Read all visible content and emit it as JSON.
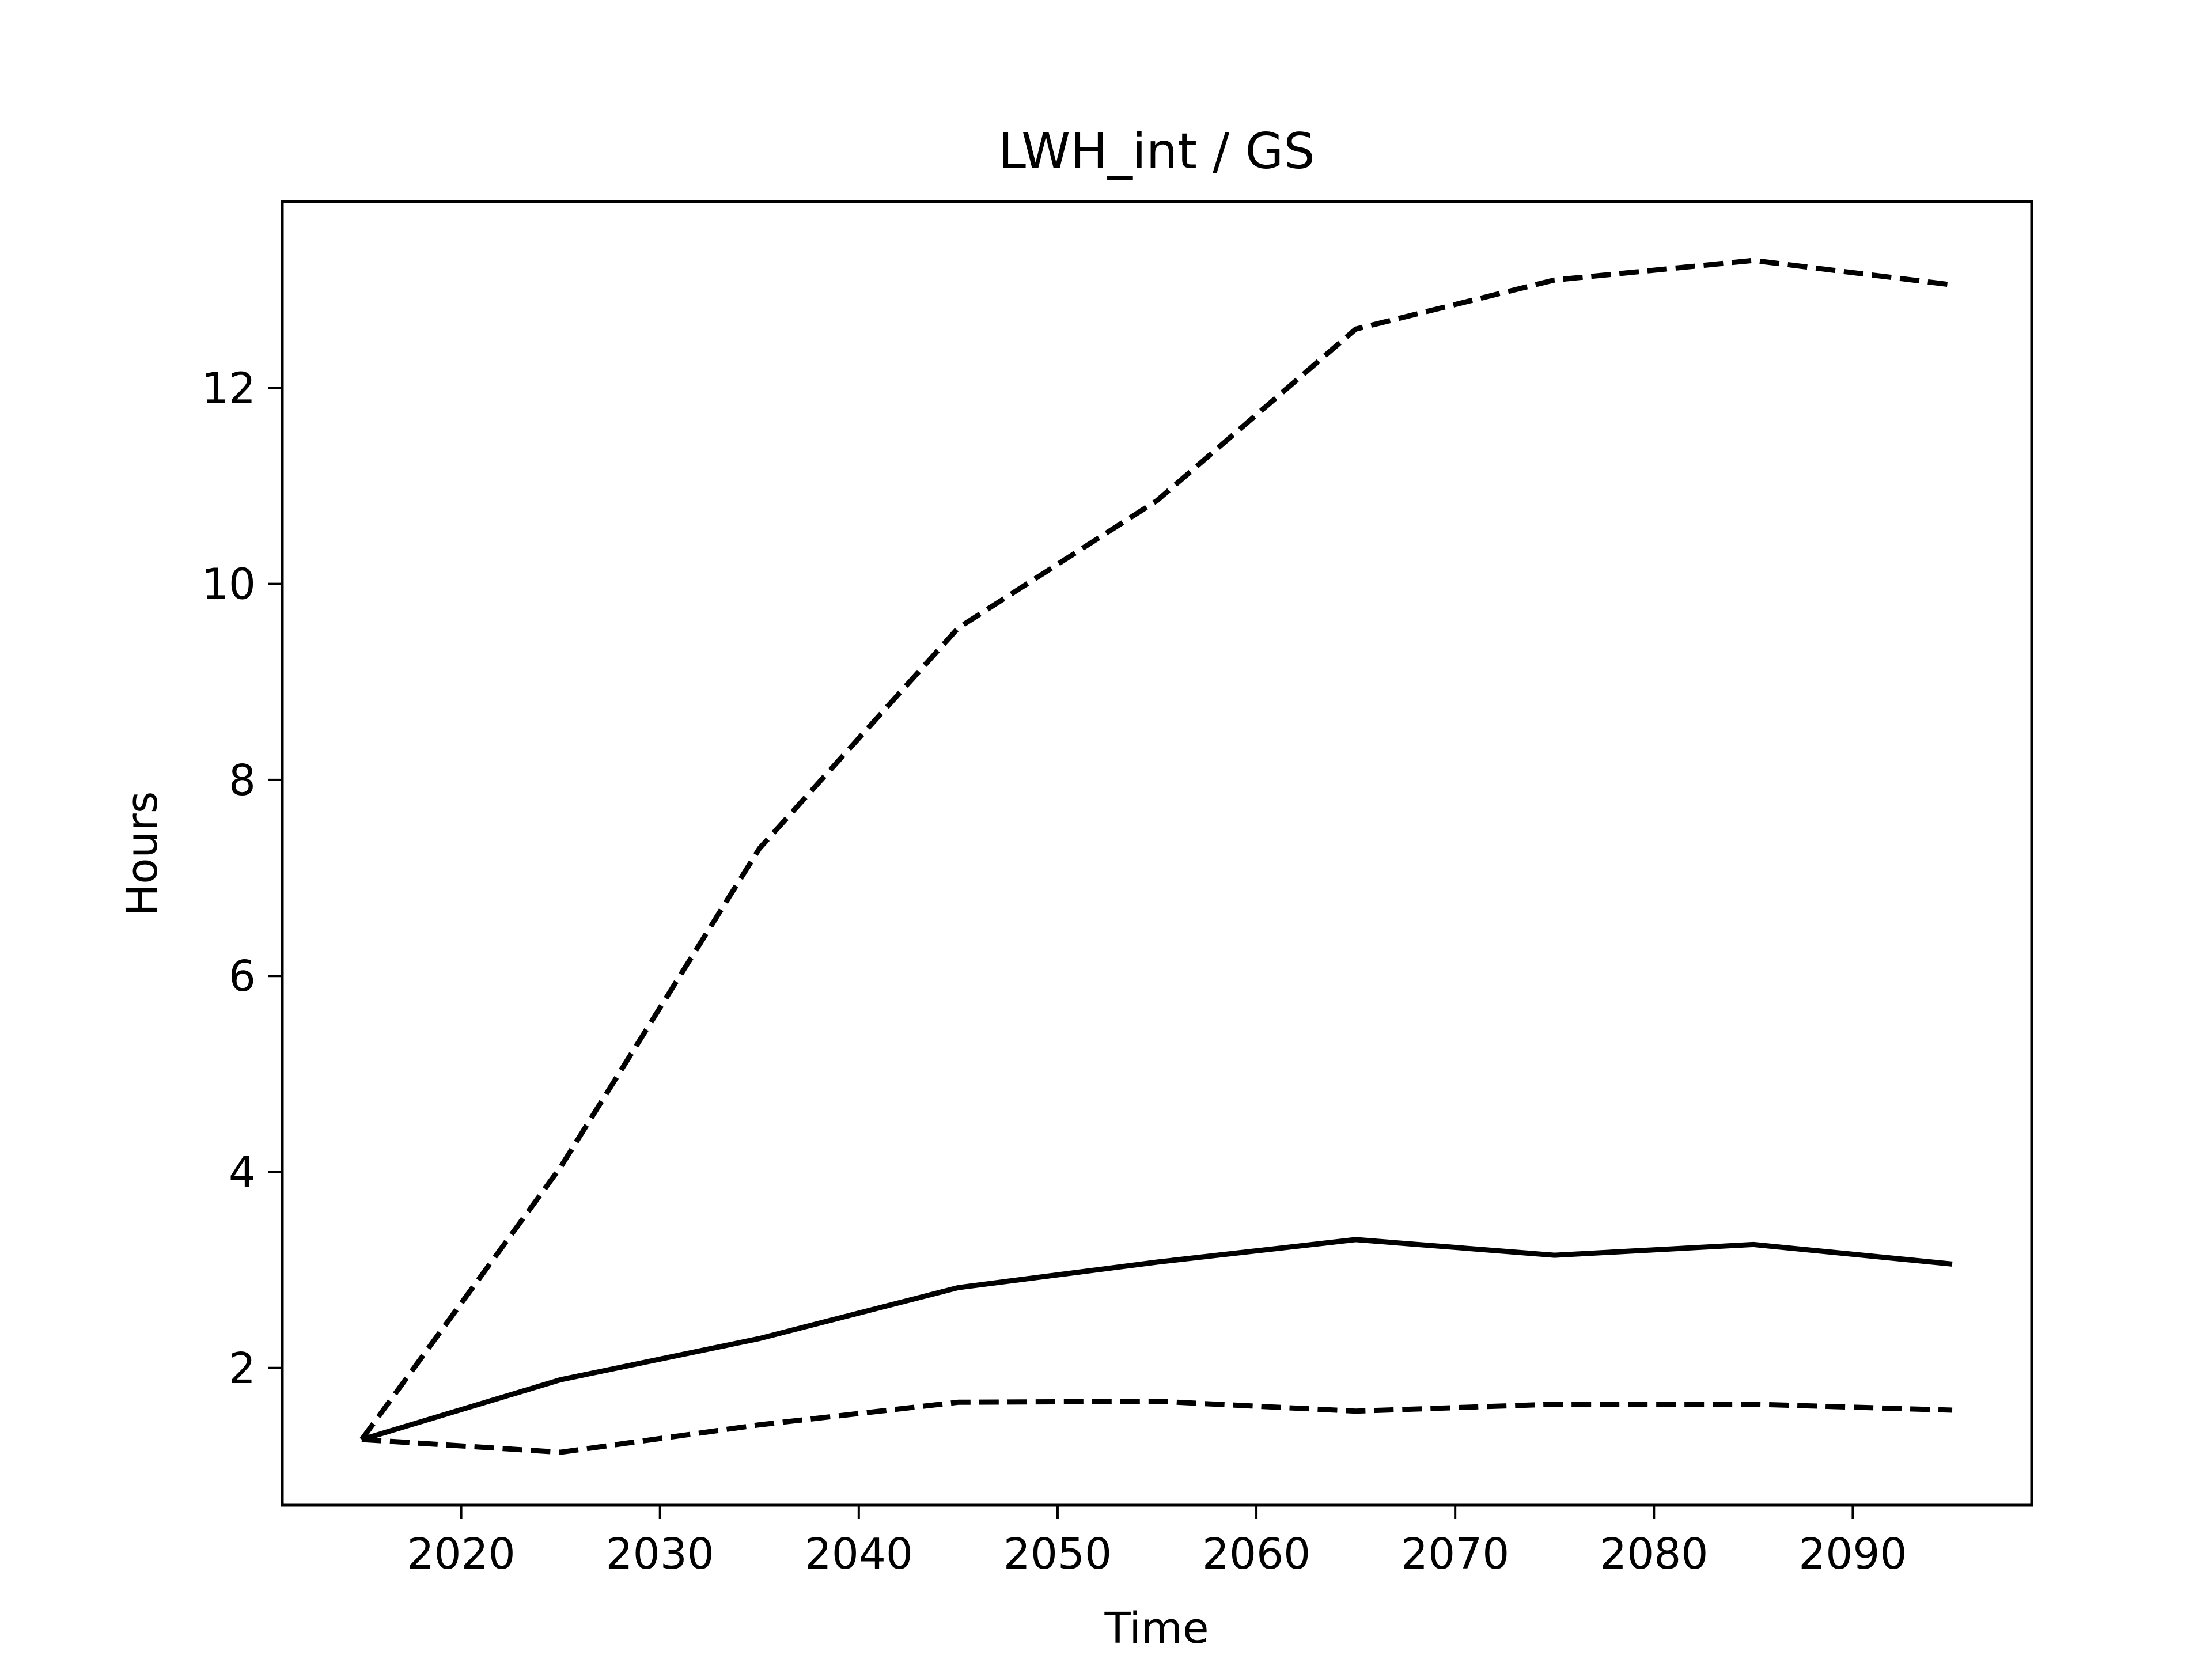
{
  "chart_data": {
    "type": "line",
    "title": "LWH_int / GS",
    "xlabel": "Time",
    "ylabel": "Hours",
    "xlim": [
      2011,
      2099
    ],
    "ylim": [
      0.6,
      13.9
    ],
    "x_ticks": [
      2020,
      2030,
      2040,
      2050,
      2060,
      2070,
      2080,
      2090
    ],
    "y_ticks": [
      2,
      4,
      6,
      8,
      10,
      12
    ],
    "grid": false,
    "legend": "none",
    "x": [
      2015,
      2025,
      2035,
      2045,
      2055,
      2065,
      2075,
      2085,
      2095
    ],
    "series": [
      {
        "style": "dashed",
        "color": "#000000",
        "values": [
          1.27,
          4.05,
          7.3,
          9.55,
          10.85,
          12.6,
          13.1,
          13.3,
          13.05
        ]
      },
      {
        "style": "solid",
        "color": "#000000",
        "values": [
          1.27,
          1.88,
          2.3,
          2.82,
          3.08,
          3.31,
          3.15,
          3.26,
          3.06
        ]
      },
      {
        "style": "dashed",
        "color": "#000000",
        "values": [
          1.27,
          1.14,
          1.42,
          1.65,
          1.66,
          1.56,
          1.63,
          1.63,
          1.57
        ]
      }
    ]
  }
}
